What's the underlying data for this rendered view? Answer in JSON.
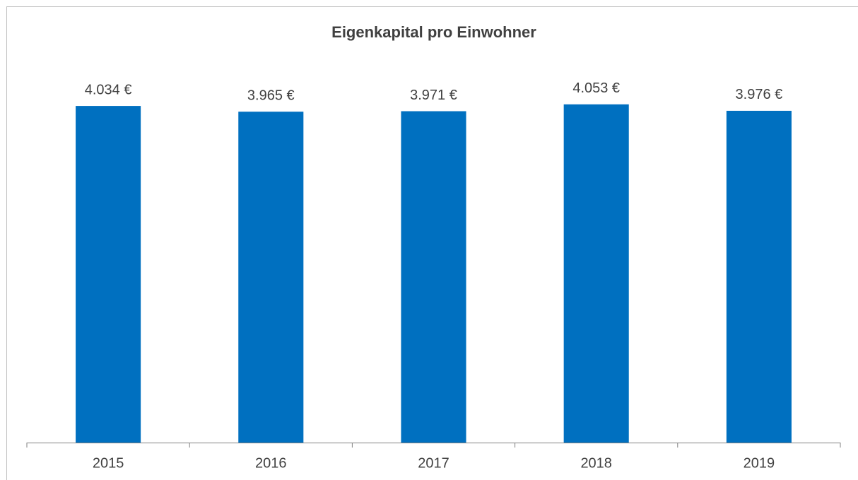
{
  "chart_data": {
    "type": "bar",
    "title": "Eigenkapital pro Einwohner",
    "categories": [
      "2015",
      "2016",
      "2017",
      "2018",
      "2019"
    ],
    "values": [
      4034,
      3965,
      3971,
      4053,
      3976
    ],
    "value_labels": [
      "4.034 €",
      "3.965 €",
      "3.971 €",
      "4.053 €",
      "3.976 €"
    ],
    "color": "#0070c0",
    "ylim": [
      0,
      4500
    ]
  }
}
